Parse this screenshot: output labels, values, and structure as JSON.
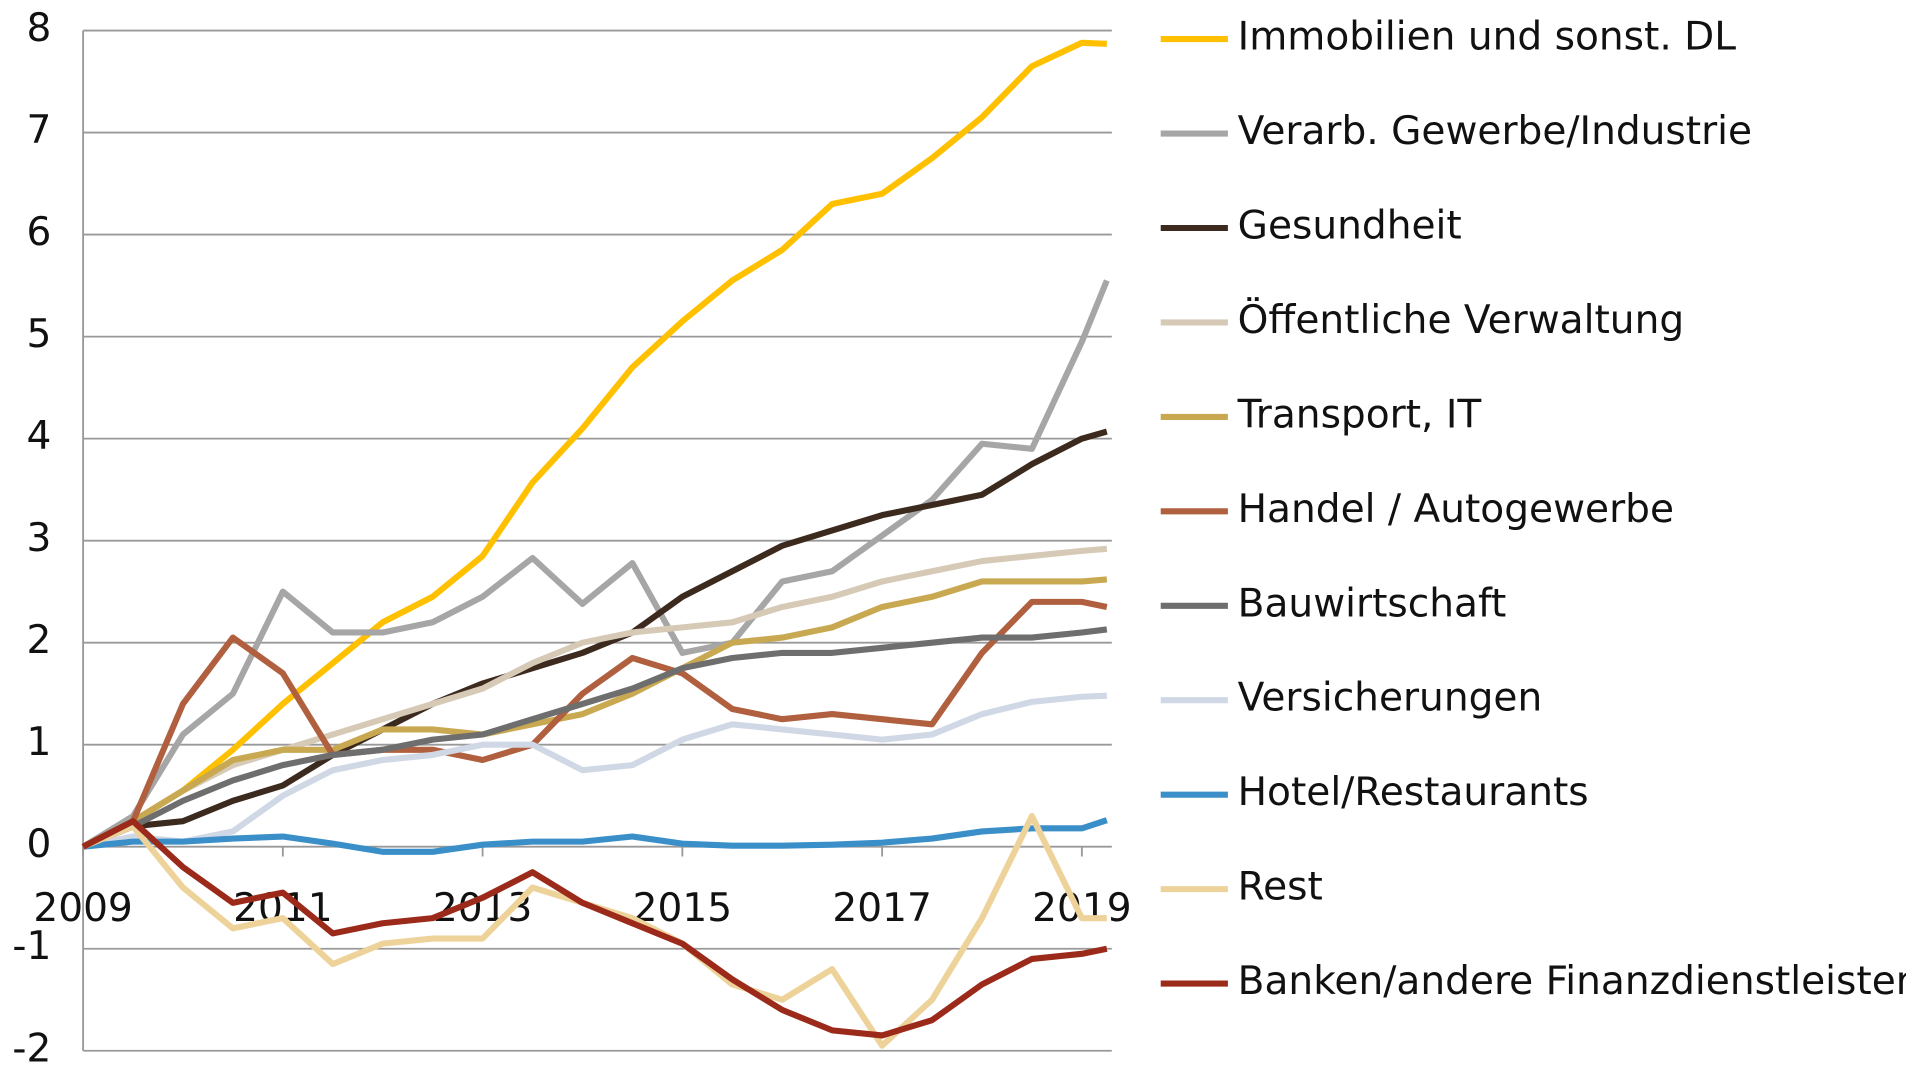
{
  "chart_data": {
    "type": "line",
    "x": [
      2009,
      2009.5,
      2010,
      2010.5,
      2011,
      2011.5,
      2012,
      2012.5,
      2013,
      2013.5,
      2014,
      2014.5,
      2015,
      2015.5,
      2016,
      2016.5,
      2017,
      2017.5,
      2018,
      2018.5,
      2019,
      2019.25
    ],
    "xlim": [
      2009,
      2019.3
    ],
    "xticks": [
      2009,
      2011,
      2013,
      2015,
      2017,
      2019
    ],
    "ylim": [
      -2,
      8
    ],
    "yticks": [
      -2,
      -1,
      0,
      1,
      2,
      3,
      4,
      5,
      6,
      7,
      8
    ],
    "grid": true,
    "legend": "right",
    "series": [
      {
        "name": "Immobilien und sonst. DL",
        "color": "#FFC000",
        "values": [
          0,
          0.25,
          0.55,
          0.95,
          1.4,
          1.8,
          2.2,
          2.45,
          2.85,
          3.57,
          4.1,
          4.7,
          5.15,
          5.55,
          5.85,
          6.3,
          6.4,
          6.75,
          7.15,
          7.65,
          7.88,
          7.87
        ]
      },
      {
        "name": "Verarb. Gewerbe/Industrie",
        "color": "#A6A6A6",
        "values": [
          0,
          0.3,
          1.1,
          1.5,
          2.5,
          2.1,
          2.1,
          2.2,
          2.45,
          2.83,
          2.38,
          2.78,
          1.9,
          2.0,
          2.6,
          2.7,
          3.05,
          3.4,
          3.95,
          3.9,
          4.95,
          5.55
        ]
      },
      {
        "name": "Gesundheit",
        "color": "#3C2A1E",
        "values": [
          0,
          0.2,
          0.25,
          0.45,
          0.6,
          0.9,
          1.15,
          1.4,
          1.6,
          1.75,
          1.9,
          2.1,
          2.45,
          2.7,
          2.95,
          3.1,
          3.25,
          3.35,
          3.45,
          3.75,
          4.0,
          4.07
        ]
      },
      {
        "name": "Öffentliche Verwaltung",
        "color": "#D6CAB6",
        "values": [
          0,
          0.25,
          0.55,
          0.8,
          0.95,
          1.1,
          1.25,
          1.4,
          1.55,
          1.8,
          2.0,
          2.1,
          2.15,
          2.2,
          2.35,
          2.45,
          2.6,
          2.7,
          2.8,
          2.85,
          2.9,
          2.92
        ]
      },
      {
        "name": "Transport, IT",
        "color": "#C8A850",
        "values": [
          0,
          0.25,
          0.55,
          0.85,
          0.95,
          0.95,
          1.15,
          1.15,
          1.1,
          1.2,
          1.3,
          1.5,
          1.75,
          2.0,
          2.05,
          2.15,
          2.35,
          2.45,
          2.6,
          2.6,
          2.6,
          2.62
        ]
      },
      {
        "name": "Handel / Autogewerbe",
        "color": "#B0603F",
        "values": [
          0,
          0.25,
          1.4,
          2.05,
          1.7,
          0.9,
          0.95,
          0.95,
          0.85,
          1.0,
          1.5,
          1.85,
          1.7,
          1.35,
          1.25,
          1.3,
          1.25,
          1.2,
          1.9,
          2.4,
          2.4,
          2.35
        ]
      },
      {
        "name": "Bauwirtschaft",
        "color": "#6E6E6E",
        "values": [
          0,
          0.2,
          0.45,
          0.65,
          0.8,
          0.9,
          0.95,
          1.05,
          1.1,
          1.25,
          1.4,
          1.55,
          1.75,
          1.85,
          1.9,
          1.9,
          1.95,
          2.0,
          2.05,
          2.05,
          2.1,
          2.13
        ]
      },
      {
        "name": "Versicherungen",
        "color": "#D0D8E6",
        "values": [
          0,
          0.1,
          0.05,
          0.15,
          0.5,
          0.75,
          0.85,
          0.9,
          1.0,
          1.0,
          0.75,
          0.8,
          1.05,
          1.2,
          1.15,
          1.1,
          1.05,
          1.1,
          1.3,
          1.42,
          1.47,
          1.48
        ]
      },
      {
        "name": "Hotel/Restaurants",
        "color": "#3A8FC8",
        "values": [
          0,
          0.05,
          0.05,
          0.08,
          0.1,
          0.03,
          -0.05,
          -0.05,
          0.02,
          0.05,
          0.05,
          0.1,
          0.03,
          0.01,
          0.01,
          0.02,
          0.04,
          0.08,
          0.15,
          0.18,
          0.18,
          0.26
        ]
      },
      {
        "name": "Rest",
        "color": "#EDD39A",
        "values": [
          0,
          0.2,
          -0.4,
          -0.8,
          -0.7,
          -1.15,
          -0.95,
          -0.9,
          -0.9,
          -0.4,
          -0.55,
          -0.7,
          -0.95,
          -1.35,
          -1.5,
          -1.2,
          -1.95,
          -1.5,
          -0.7,
          0.3,
          -0.7,
          -0.7
        ]
      },
      {
        "name": "Banken/andere Finanzdienstleister",
        "color": "#9B2A1A",
        "values": [
          0,
          0.25,
          -0.2,
          -0.55,
          -0.45,
          -0.85,
          -0.75,
          -0.7,
          -0.5,
          -0.25,
          -0.55,
          -0.75,
          -0.95,
          -1.3,
          -1.6,
          -1.8,
          -1.85,
          -1.7,
          -1.35,
          -1.1,
          -1.05,
          -1.0
        ]
      }
    ]
  }
}
